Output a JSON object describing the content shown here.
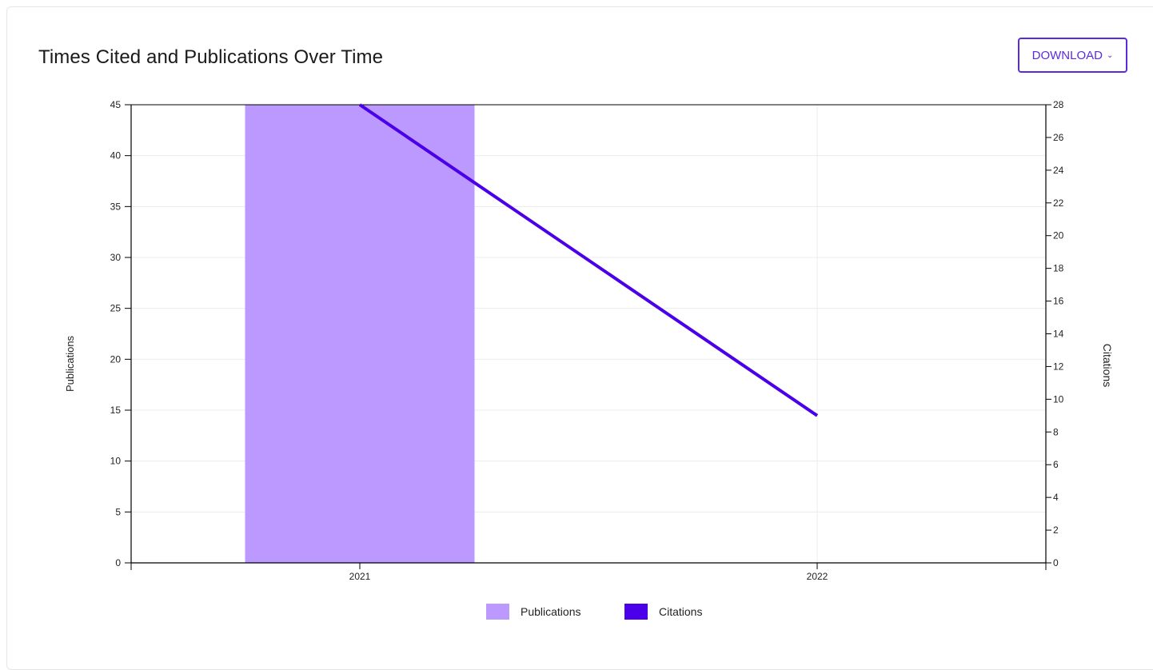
{
  "header": {
    "title": "Times Cited and Publications Over Time",
    "download_label": "DOWNLOAD",
    "download_icon": "chevron-down-icon"
  },
  "colors": {
    "publications": "#bb99ff",
    "citations": "#4a00e8",
    "accent": "#5b2bd9",
    "grid": "#ececec",
    "axis": "#000000"
  },
  "chart_data": {
    "type": "bar",
    "categories": [
      "2021",
      "2022"
    ],
    "xlim": [
      "2020.5",
      "2022.5"
    ],
    "series": [
      {
        "name": "Publications",
        "type": "bar",
        "axis": "left",
        "values": [
          45,
          null
        ]
      },
      {
        "name": "Citations",
        "type": "line",
        "axis": "right",
        "values": [
          28,
          9
        ]
      }
    ],
    "ylabel": "Publications",
    "ylabel_right": "Citations",
    "ylim": [
      0,
      45
    ],
    "ylim_right": [
      0,
      28
    ],
    "yticks": [
      "0",
      "5",
      "10",
      "15",
      "20",
      "25",
      "30",
      "35",
      "40",
      "45"
    ],
    "yticks_right": [
      "0",
      "2",
      "4",
      "6",
      "8",
      "10",
      "12",
      "14",
      "16",
      "18",
      "20",
      "22",
      "24",
      "26",
      "28"
    ],
    "grid": true,
    "legend": [
      "Publications",
      "Citations"
    ],
    "legend_position": "bottom"
  }
}
